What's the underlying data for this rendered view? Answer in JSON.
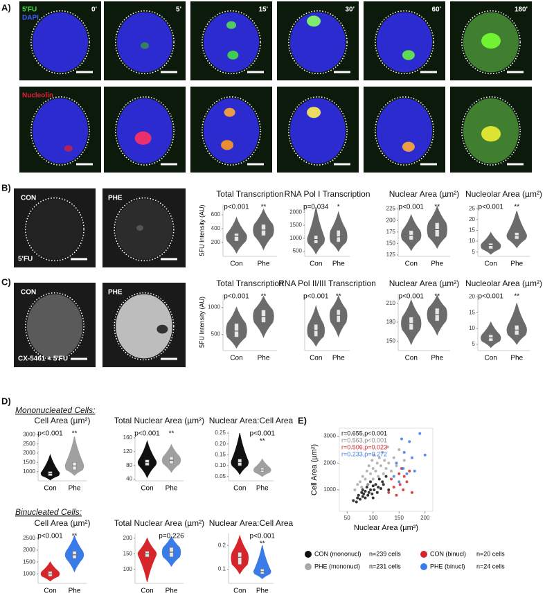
{
  "panel_labels": [
    "A)",
    "B)",
    "C)",
    "D)",
    "E)"
  ],
  "panel_a": {
    "channels_top": [
      "5'FU",
      "DAPI"
    ],
    "channel_bottom": "Nucleolin",
    "times": [
      "0'",
      "5'",
      "15'",
      "30'",
      "60'",
      "180'"
    ]
  },
  "panel_b": {
    "images": [
      "CON",
      "PHE"
    ],
    "stain": "5'FU"
  },
  "panel_c": {
    "images": [
      "CON",
      "PHE"
    ],
    "stain": "CX-5461 + 5'FU"
  },
  "panel_d": {
    "groups": [
      "Mononucleated Cells:",
      "Binucleated Cells:"
    ]
  },
  "chart_data": [
    {
      "type": "violin",
      "title": "Total Transcription",
      "ylabel": "5FU Intensity (AU)",
      "categories": [
        "Con",
        "Phe"
      ],
      "ylim": [
        0,
        750
      ],
      "yticks": [
        200,
        400,
        600
      ],
      "violins": [
        {
          "color": "#6b6b6b",
          "min": 50,
          "q1": 220,
          "median": 290,
          "q3": 330,
          "max": 560
        },
        {
          "color": "#6b6b6b",
          "min": 100,
          "q1": 300,
          "median": 380,
          "q3": 460,
          "max": 680
        }
      ],
      "annotations": [
        {
          "text": "p<0.001",
          "category": 0
        },
        {
          "text": "**",
          "category": 1
        }
      ]
    },
    {
      "type": "violin",
      "title": "RNA Pol I Transcription",
      "categories": [
        "Con",
        "Phe"
      ],
      "ylim": [
        300,
        2300
      ],
      "yticks": [
        500,
        1000,
        1500,
        2000
      ],
      "violins": [
        {
          "color": "#6b6b6b",
          "min": 400,
          "q1": 800,
          "median": 950,
          "q3": 1100,
          "max": 2200
        },
        {
          "color": "#6b6b6b",
          "min": 500,
          "q1": 850,
          "median": 1050,
          "q3": 1300,
          "max": 2000
        }
      ],
      "annotations": [
        {
          "text": "p=0.034",
          "category": 0
        },
        {
          "text": "*",
          "category": 1
        }
      ]
    },
    {
      "type": "violin",
      "title": "Nuclear Area (µm²)",
      "categories": [
        "Con",
        "Phe"
      ],
      "ylim": [
        122,
        235
      ],
      "yticks": [
        125,
        150,
        175,
        200,
        225
      ],
      "violins": [
        {
          "color": "#6b6b6b",
          "min": 135,
          "q1": 158,
          "median": 168,
          "q3": 178,
          "max": 212
        },
        {
          "color": "#6b6b6b",
          "min": 140,
          "q1": 165,
          "median": 180,
          "q3": 195,
          "max": 230
        }
      ],
      "annotations": [
        {
          "text": "p<0.001",
          "category": 0
        },
        {
          "text": "**",
          "category": 1
        }
      ]
    },
    {
      "type": "violin",
      "title": "Nucleolar Area (µm²)",
      "categories": [
        "Con",
        "Phe"
      ],
      "ylim": [
        3,
        27
      ],
      "yticks": [
        5,
        10,
        15,
        20,
        25
      ],
      "violins": [
        {
          "color": "#6b6b6b",
          "min": 4,
          "q1": 6.5,
          "median": 8,
          "q3": 9,
          "max": 14
        },
        {
          "color": "#6b6b6b",
          "min": 7,
          "q1": 11,
          "median": 12.5,
          "q3": 14,
          "max": 24
        }
      ],
      "annotations": [
        {
          "text": "p<0.001",
          "category": 0
        },
        {
          "text": "**",
          "category": 1
        }
      ]
    },
    {
      "type": "violin",
      "title": "Total Transcription",
      "ylabel": "5FU Intensity (AU)",
      "categories": [
        "Con",
        "Phe"
      ],
      "ylim": [
        200,
        1250
      ],
      "yticks": [
        500,
        1000
      ],
      "violins": [
        {
          "color": "#6b6b6b",
          "min": 250,
          "q1": 450,
          "median": 560,
          "q3": 700,
          "max": 1000
        },
        {
          "color": "#6b6b6b",
          "min": 450,
          "q1": 720,
          "median": 830,
          "q3": 950,
          "max": 1200
        }
      ],
      "annotations": [
        {
          "text": "p<0.001",
          "category": 0
        },
        {
          "text": "**",
          "category": 1
        }
      ]
    },
    {
      "type": "violin",
      "title": "RNA Pol II/III Transcription",
      "categories": [
        "Con",
        "Phe"
      ],
      "ylim": [
        0,
        10
      ],
      "yticks": [],
      "violins": [
        {
          "color": "#6b6b6b",
          "min": 0.8,
          "q1": 2.5,
          "median": 3.5,
          "q3": 4.6,
          "max": 7.8
        },
        {
          "color": "#6b6b6b",
          "min": 2.5,
          "q1": 5,
          "median": 6.2,
          "q3": 7.2,
          "max": 9.6
        }
      ],
      "annotations": [
        {
          "text": "p<0.001",
          "category": 0
        },
        {
          "text": "**",
          "category": 1
        }
      ]
    },
    {
      "type": "violin",
      "title": "Nuclear Area (µm²)",
      "categories": [
        "Con",
        "Phe"
      ],
      "ylim": [
        135,
        225
      ],
      "yticks": [
        150,
        180,
        210
      ],
      "violins": [
        {
          "color": "#6b6b6b",
          "min": 145,
          "q1": 168,
          "median": 178,
          "q3": 188,
          "max": 215
        },
        {
          "color": "#6b6b6b",
          "min": 160,
          "q1": 182,
          "median": 192,
          "q3": 202,
          "max": 222
        }
      ],
      "annotations": [
        {
          "text": "p<0.001",
          "category": 0
        },
        {
          "text": "**",
          "category": 1
        }
      ]
    },
    {
      "type": "violin",
      "title": "Nucleolar Area (µm²)",
      "categories": [
        "Con",
        "Phe"
      ],
      "ylim": [
        3,
        21
      ],
      "yticks": [
        5,
        10,
        15,
        20
      ],
      "violins": [
        {
          "color": "#6b6b6b",
          "min": 4,
          "q1": 6,
          "median": 7,
          "q3": 8,
          "max": 12
        },
        {
          "color": "#6b6b6b",
          "min": 5,
          "q1": 8,
          "median": 9.5,
          "q3": 11,
          "max": 18
        }
      ],
      "annotations": [
        {
          "text": "p<0.001",
          "category": 0
        },
        {
          "text": "**",
          "category": 1
        }
      ]
    },
    {
      "type": "violin",
      "title": "Cell Area (µm²)",
      "categories": [
        "Con",
        "Phe"
      ],
      "ylim": [
        500,
        3200
      ],
      "yticks": [
        1000,
        1500,
        2000,
        2500,
        3000
      ],
      "violins": [
        {
          "color": "#111111",
          "min": 550,
          "q1": 780,
          "median": 900,
          "q3": 1000,
          "max": 1900
        },
        {
          "color": "#a0a0a0",
          "min": 800,
          "q1": 1100,
          "median": 1300,
          "q3": 1500,
          "max": 2900
        }
      ],
      "annotations": [
        {
          "text": "p<0.001",
          "category": 0
        },
        {
          "text": "**",
          "category": 1
        }
      ]
    },
    {
      "type": "violin",
      "title": "Total Nuclear Area (µm²)",
      "categories": [
        "Con",
        "Phe"
      ],
      "ylim": [
        35,
        180
      ],
      "yticks": [
        40,
        80,
        120,
        160
      ],
      "violins": [
        {
          "color": "#111111",
          "min": 45,
          "q1": 80,
          "median": 88,
          "q3": 96,
          "max": 150
        },
        {
          "color": "#a0a0a0",
          "min": 60,
          "q1": 85,
          "median": 95,
          "q3": 105,
          "max": 140
        }
      ],
      "annotations": [
        {
          "text": "p<0.001",
          "category": 0
        },
        {
          "text": "**",
          "category": 1
        }
      ]
    },
    {
      "type": "violin",
      "title": "Nuclear Area:Cell Area",
      "categories": [
        "Con",
        "Phe"
      ],
      "ylim": [
        0.03,
        0.26
      ],
      "yticks": [
        0.05,
        {
          "value": 0.1,
          "label": "0.10"
        },
        0.15,
        {
          "value": 0.2,
          "label": "0.20"
        },
        0.25
      ],
      "violins": [
        {
          "color": "#111111",
          "min": 0.06,
          "q1": 0.1,
          "median": 0.115,
          "q3": 0.13,
          "max": 0.25
        },
        {
          "color": "#a0a0a0",
          "min": 0.05,
          "q1": 0.07,
          "median": 0.08,
          "q3": 0.09,
          "max": 0.13
        }
      ],
      "annotations": [
        {
          "text": "p<0.001",
          "category": 1
        },
        {
          "text": "**",
          "category": 1
        }
      ]
    },
    {
      "type": "violin",
      "title": "Cell Area (µm²)",
      "categories": [
        "Con",
        "Phe"
      ],
      "ylim": [
        600,
        2700
      ],
      "yticks": [
        1000,
        1500,
        2000,
        2500
      ],
      "violins": [
        {
          "color": "#d7262b",
          "min": 700,
          "q1": 900,
          "median": 1000,
          "q3": 1100,
          "max": 1500
        },
        {
          "color": "#3b7be8",
          "min": 1100,
          "q1": 1650,
          "median": 1800,
          "q3": 1950,
          "max": 2600
        }
      ],
      "annotations": [
        {
          "text": "p<0.001",
          "category": 0
        },
        {
          "text": "**",
          "category": 1
        }
      ]
    },
    {
      "type": "violin",
      "title": "Total Nuclear Area (µm²)",
      "categories": [
        "Con",
        "Phe"
      ],
      "ylim": [
        55,
        215
      ],
      "yticks": [
        100,
        150,
        200
      ],
      "violins": [
        {
          "color": "#d7262b",
          "min": 60,
          "q1": 140,
          "median": 150,
          "q3": 158,
          "max": 200
        },
        {
          "color": "#3b7be8",
          "min": 110,
          "q1": 140,
          "median": 155,
          "q3": 170,
          "max": 205
        }
      ],
      "annotations": [
        {
          "text": "p=0.226",
          "category": 1
        }
      ]
    },
    {
      "type": "violin",
      "title": "Nuclear Area:Cell Area",
      "categories": [
        "Con",
        "Phe"
      ],
      "ylim": [
        0.04,
        0.25
      ],
      "yticks": [
        0.1,
        0.2
      ],
      "violins": [
        {
          "color": "#d7262b",
          "min": 0.08,
          "q1": 0.12,
          "median": 0.15,
          "q3": 0.17,
          "max": 0.24
        },
        {
          "color": "#3b7be8",
          "min": 0.06,
          "q1": 0.08,
          "median": 0.09,
          "q3": 0.1,
          "max": 0.2
        }
      ],
      "annotations": [
        {
          "text": "p<0.001",
          "category": 1
        },
        {
          "text": "**",
          "category": 1
        }
      ]
    },
    {
      "type": "scatter",
      "xlabel": "Nuclear Area (µm²)",
      "ylabel": "Cell Area (µm²)",
      "xlim": [
        35,
        215
      ],
      "ylim": [
        200,
        3300
      ],
      "xticks": [
        50,
        100,
        150,
        200
      ],
      "yticks": [
        1000,
        2000,
        3000
      ],
      "stats": [
        {
          "text": "r=0.655,p<0.001",
          "color": "#111111"
        },
        {
          "text": "r=0.563,p<0.001",
          "color": "#8a8a8a"
        },
        {
          "text": "r=0.506,p=0.023",
          "color": "#d7262b"
        },
        {
          "text": "r=0.233,p=0.272",
          "color": "#3b7be8"
        }
      ],
      "series": [
        {
          "name": "CON (mononucl)",
          "count_label": "n=239 cells",
          "color": "#111111",
          "x": [
            62,
            68,
            70,
            72,
            75,
            78,
            80,
            80,
            82,
            85,
            85,
            88,
            90,
            90,
            92,
            95,
            95,
            98,
            100,
            100,
            102,
            105,
            108,
            110,
            112,
            115,
            118,
            120,
            125,
            130
          ],
          "y": [
            600,
            550,
            700,
            800,
            650,
            900,
            750,
            1000,
            850,
            700,
            950,
            1100,
            800,
            1200,
            900,
            1000,
            1300,
            850,
            1150,
            700,
            1000,
            1200,
            900,
            1100,
            1400,
            1050,
            1300,
            1200,
            1500,
            1000
          ]
        },
        {
          "name": "PHE (mononucl)",
          "count_label": "n=231 cells",
          "color": "#a8a8a8",
          "x": [
            65,
            70,
            75,
            78,
            80,
            85,
            88,
            90,
            92,
            95,
            98,
            100,
            100,
            102,
            105,
            108,
            110,
            112,
            115,
            118,
            120,
            122,
            125,
            128,
            130,
            135,
            140,
            145,
            150,
            160
          ],
          "y": [
            1000,
            1200,
            1300,
            1100,
            1500,
            1400,
            1700,
            1200,
            1900,
            1600,
            2100,
            1400,
            1800,
            2300,
            1700,
            2000,
            1500,
            2200,
            1900,
            2400,
            1600,
            2100,
            1800,
            2600,
            2000,
            1700,
            2200,
            1900,
            2500,
            2100
          ]
        },
        {
          "name": "CON (binucl)",
          "count_label": "n=20 cells",
          "color": "#d7262b",
          "x": [
            130,
            135,
            140,
            145,
            150,
            152,
            155,
            158,
            160,
            165,
            170,
            175
          ],
          "y": [
            900,
            1400,
            1100,
            800,
            1600,
            1200,
            1800,
            1000,
            1500,
            1300,
            1700,
            900
          ]
        },
        {
          "name": "PHE (binucl)",
          "count_label": "n=24 cells",
          "color": "#3b7be8",
          "x": [
            140,
            145,
            150,
            155,
            158,
            160,
            165,
            170,
            175,
            180,
            190,
            200
          ],
          "y": [
            1500,
            2000,
            1300,
            2900,
            1800,
            2400,
            1600,
            2800,
            2200,
            1700,
            3100,
            2300
          ]
        }
      ]
    }
  ]
}
